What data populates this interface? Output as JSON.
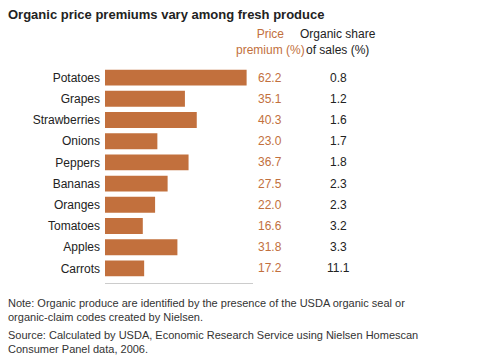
{
  "chart_data": {
    "type": "bar",
    "orientation": "horizontal",
    "title": "Organic price premiums vary among fresh produce",
    "categories": [
      "Potatoes",
      "Grapes",
      "Strawberries",
      "Onions",
      "Peppers",
      "Bananas",
      "Oranges",
      "Tomatoes",
      "Apples",
      "Carrots"
    ],
    "values": [
      62.2,
      35.1,
      40.3,
      23.0,
      36.7,
      27.5,
      22.0,
      16.6,
      31.8,
      17.2
    ],
    "value_labels": [
      "62.2",
      "35.1",
      "40.3",
      "23.0",
      "36.7",
      "27.5",
      "22.0",
      "16.6",
      "31.8",
      "17.2"
    ],
    "value_header": [
      "Price",
      "premium (%)"
    ],
    "organic_share": [
      0.8,
      1.2,
      1.6,
      1.7,
      1.8,
      2.3,
      2.3,
      3.2,
      3.3,
      11.1
    ],
    "organic_share_header": [
      "Organic share",
      "of sales (%)"
    ],
    "color": "#c2703d",
    "data_labels": true,
    "tick_labels": "y",
    "grid": false,
    "xlim": [
      0,
      65
    ],
    "xticks": [],
    "note": [
      "Note: Organic produce are identified by the presence of the USDA organic seal or",
      "organic-claim codes created by Nielsen."
    ],
    "source": [
      "Source: Calculated by USDA, Economic Research Service using Nielsen Homescan",
      "Consumer Panel data, 2006."
    ]
  }
}
